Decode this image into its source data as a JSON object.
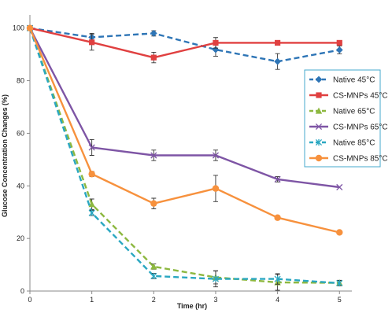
{
  "chart_data": {
    "type": "line",
    "title": "",
    "xlabel": "Time (hr)",
    "ylabel": "Glucose Concentration Changes (%)",
    "x": [
      0,
      1,
      2,
      3,
      4,
      5
    ],
    "xlim": [
      0,
      5.2
    ],
    "ylim": [
      0,
      105
    ],
    "yticks": [
      0,
      20,
      40,
      60,
      80,
      100
    ],
    "grid": false,
    "legend_position": "right",
    "series": [
      {
        "name": "Native 45°C",
        "color": "#2E75B6",
        "dash": true,
        "marker": "diamond",
        "values": [
          100,
          96.5,
          98,
          91.8,
          87.3,
          91.7
        ],
        "errors": [
          0,
          1.5,
          1,
          2.5,
          3,
          1.5
        ]
      },
      {
        "name": "CS-MNPs 45°C",
        "color": "#E04040",
        "dash": false,
        "marker": "square",
        "values": [
          100,
          94.6,
          88.8,
          94.4,
          94.4,
          94.4
        ],
        "errors": [
          0,
          3,
          2,
          2,
          0.8,
          0
        ]
      },
      {
        "name": "Native 65°C",
        "color": "#8DB840",
        "dash": true,
        "marker": "triangle",
        "values": [
          100,
          33,
          9.3,
          5.2,
          3.3,
          3.1
        ],
        "errors": [
          0,
          2,
          1,
          2.5,
          3,
          1
        ]
      },
      {
        "name": "CS-MNPs 65°C",
        "color": "#7E55A5",
        "dash": false,
        "marker": "x",
        "values": [
          100,
          54.6,
          51.6,
          51.6,
          42.5,
          39.5
        ],
        "errors": [
          0,
          3,
          2,
          2,
          1,
          0
        ]
      },
      {
        "name": "Native 85°C",
        "color": "#2AA7C1",
        "dash": true,
        "marker": "asterisk",
        "values": [
          100,
          29.7,
          5.7,
          4.6,
          4.6,
          3
        ],
        "errors": [
          0,
          1,
          1,
          3,
          2,
          1
        ]
      },
      {
        "name": "CS-MNPs 85°C",
        "color": "#F7913D",
        "dash": false,
        "marker": "circle",
        "values": [
          100,
          44.5,
          33.3,
          39,
          27.9,
          22.3
        ],
        "errors": [
          0,
          1,
          2,
          5,
          0.6,
          0
        ]
      }
    ]
  }
}
